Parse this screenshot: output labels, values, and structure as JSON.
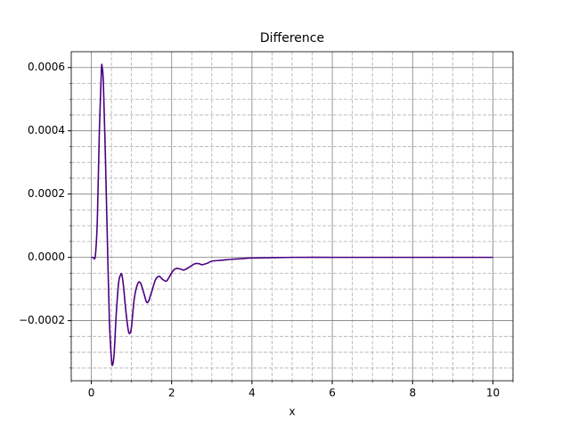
{
  "chart_data": {
    "type": "line",
    "title": "Difference",
    "x_label": "x",
    "xlim": [
      -0.5,
      10.5
    ],
    "ylim": [
      -0.00039,
      0.00065
    ],
    "xticks": [
      0,
      2,
      4,
      6,
      8,
      10
    ],
    "yticks": [
      {
        "value": -0.0002,
        "label": "−0.0002"
      },
      {
        "value": 0,
        "label": "0.0000"
      },
      {
        "value": 0.0002,
        "label": "0.0002"
      },
      {
        "value": 0.0004,
        "label": "0.0004"
      },
      {
        "value": 0.0006,
        "label": "0.0006"
      }
    ],
    "grid": true,
    "minor_grid": true,
    "minor_divisions": 4,
    "series": [
      {
        "color": "#4b0082",
        "x": [
          0,
          0.05,
          0.1,
          0.15,
          0.2,
          0.25,
          0.27,
          0.3,
          0.35,
          0.4,
          0.45,
          0.5,
          0.53,
          0.57,
          0.62,
          0.68,
          0.73,
          0.76,
          0.8,
          0.86,
          0.92,
          0.96,
          1.0,
          1.07,
          1.15,
          1.22,
          1.3,
          1.37,
          1.42,
          1.5,
          1.6,
          1.69,
          1.78,
          1.87,
          1.95,
          2.05,
          2.13,
          2.22,
          2.31,
          2.45,
          2.58,
          2.68,
          2.76,
          2.9,
          3.0,
          3.25,
          3.5,
          3.75,
          4,
          4.5,
          5,
          6,
          7,
          8,
          9,
          10
        ],
        "values": [
          0,
          0,
          5e-06,
          0.00012,
          0.0004,
          0.00059,
          0.0006,
          0.00055,
          0.00032,
          5e-05,
          -0.0002,
          -0.00032,
          -0.00034,
          -0.0003,
          -0.00018,
          -8e-05,
          -5.5e-05,
          -5.5e-05,
          -9e-05,
          -0.00017,
          -0.00023,
          -0.00024,
          -0.00022,
          -0.00013,
          -8.5e-05,
          -8e-05,
          -0.00011,
          -0.00014,
          -0.00014,
          -0.00011,
          -7e-05,
          -6e-05,
          -7e-05,
          -7.5e-05,
          -6e-05,
          -4e-05,
          -3.5e-05,
          -3.7e-05,
          -4e-05,
          -3e-05,
          -2e-05,
          -2e-05,
          -2.3e-05,
          -1.8e-05,
          -1.2e-05,
          -9e-06,
          -6e-06,
          -4e-06,
          -2e-06,
          -1e-06,
          0,
          0,
          0,
          0,
          0,
          0
        ]
      }
    ]
  }
}
